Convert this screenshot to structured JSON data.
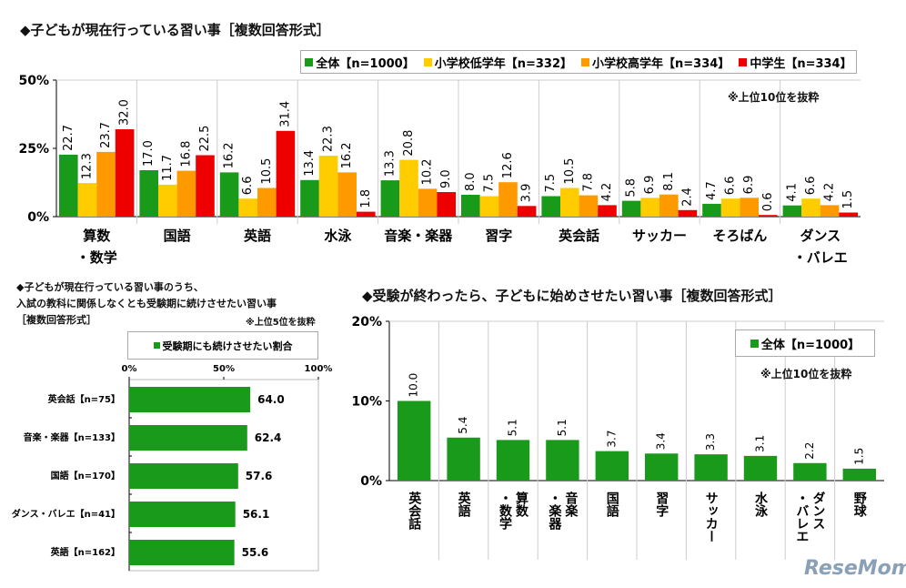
{
  "chart_data": [
    {
      "type": "bar",
      "title": "◆子どもが現在行っている習い事［複数回答形式］",
      "note": "※上位10位を抜粋",
      "categories": [
        "算数\n・数学",
        "国語",
        "英語",
        "水泳",
        "音楽・楽器",
        "習字",
        "英会話",
        "サッカー",
        "そろばん",
        "ダンス\n・バレエ"
      ],
      "ylim": [
        0,
        50
      ],
      "yticks": [
        "0%",
        "25%",
        "50%"
      ],
      "legend_position": "top-right",
      "series": [
        {
          "name": "全体【n=1000】",
          "color": "#1a9a1a",
          "values": [
            22.7,
            17.0,
            16.2,
            13.4,
            13.3,
            8.0,
            7.5,
            5.8,
            4.7,
            4.1
          ]
        },
        {
          "name": "小学校低学年【n=332】",
          "color": "#ffcc00",
          "values": [
            12.3,
            11.7,
            6.6,
            22.3,
            20.8,
            7.5,
            10.5,
            6.9,
            6.6,
            6.6
          ]
        },
        {
          "name": "小学校高学年【n=334】",
          "color": "#ff9900",
          "values": [
            23.7,
            16.8,
            10.5,
            16.2,
            10.2,
            12.6,
            7.8,
            8.1,
            6.9,
            4.2
          ]
        },
        {
          "name": "中学生【n=334】",
          "color": "#ee0000",
          "values": [
            32.0,
            22.5,
            31.4,
            1.8,
            9.0,
            3.9,
            4.2,
            2.4,
            0.6,
            1.5
          ]
        }
      ]
    },
    {
      "type": "bar",
      "orientation": "horizontal",
      "title_lines": [
        "◆子どもが現在行っている習い事のうち、",
        "入試の教科に関係しなくとも受験期に続けさせたい習い事",
        "［複数回答形式］"
      ],
      "note": "※上位5位を抜粋",
      "categories": [
        "英会話【n=75】",
        "音楽・楽器【n=133】",
        "国語【n=170】",
        "ダンス・バレエ【n=41】",
        "英語【n=162】"
      ],
      "xlim": [
        0,
        100
      ],
      "xticks": [
        "0%",
        "50%",
        "100%"
      ],
      "series": [
        {
          "name": "受験期にも続けさせたい割合",
          "color": "#1a9a1a",
          "values": [
            64.0,
            62.4,
            57.6,
            56.1,
            55.6
          ]
        }
      ]
    },
    {
      "type": "bar",
      "title": "◆受験が終わったら、子どもに始めさせたい習い事［複数回答形式］",
      "note": "※上位10位を抜粋",
      "categories": [
        "英会話",
        "英語",
        "算数\n・数学",
        "音楽\n・楽器",
        "国語",
        "習字",
        "サッカー",
        "水泳",
        "ダンス\n・バレエ",
        "野球"
      ],
      "ylim": [
        0,
        20
      ],
      "yticks": [
        "0%",
        "10%",
        "20%"
      ],
      "legend_position": "top-right",
      "series": [
        {
          "name": "全体【n=1000】",
          "color": "#1a9a1a",
          "values": [
            10.0,
            5.4,
            5.1,
            5.1,
            3.7,
            3.4,
            3.3,
            3.1,
            2.2,
            1.5
          ]
        }
      ]
    }
  ],
  "logo": "ReseMom"
}
